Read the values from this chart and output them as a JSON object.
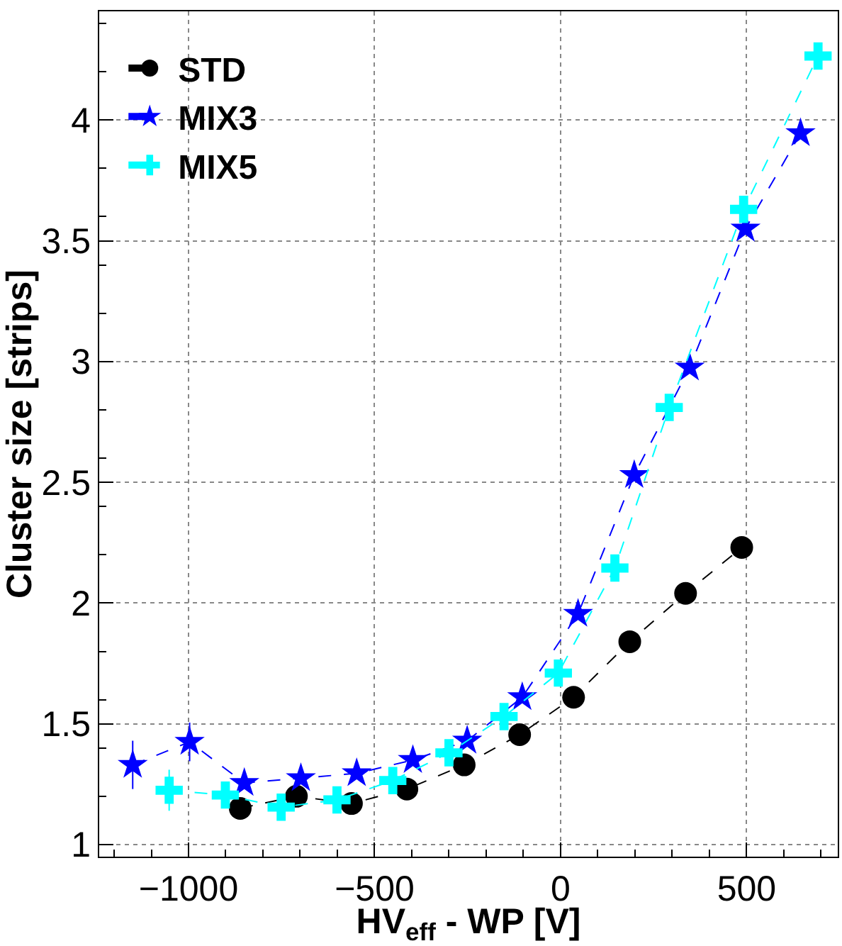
{
  "chart_data": {
    "type": "line",
    "xlabel": "HV$_{eff}$ - WP [V]",
    "ylabel": "Cluster size [strips]",
    "xlim": [
      -1240,
      745
    ],
    "ylim": [
      0.95,
      4.45
    ],
    "xticks": [
      -1000,
      -500,
      0,
      500
    ],
    "yticks": [
      1,
      1.5,
      2,
      2.5,
      3,
      3.5,
      4
    ],
    "grid": true,
    "legend": "top left",
    "line_style": "dashed",
    "series": [
      {
        "name": "STD",
        "color": "#000000",
        "marker": "circle",
        "x": [
          -861,
          -710,
          -562,
          -413,
          -259,
          -110,
          35,
          186,
          336,
          487
        ],
        "values": [
          1.15,
          1.2,
          1.17,
          1.23,
          1.33,
          1.455,
          1.61,
          1.84,
          2.04,
          2.23
        ],
        "errors": [
          0.03,
          null,
          null,
          null,
          null,
          null,
          null,
          null,
          null,
          null
        ]
      },
      {
        "name": "MIX3",
        "color": "#0000ff",
        "marker": "star",
        "x": [
          -1150,
          -997,
          -850,
          -698,
          -548,
          -397,
          -251,
          -103,
          47,
          198,
          347,
          497,
          645
        ],
        "values": [
          1.33,
          1.425,
          1.255,
          1.275,
          1.295,
          1.35,
          1.43,
          1.61,
          1.955,
          2.53,
          2.975,
          3.55,
          3.945
        ],
        "errors": [
          0.1,
          0.08,
          null,
          null,
          null,
          null,
          null,
          null,
          null,
          null,
          null,
          null,
          null
        ]
      },
      {
        "name": "MIX5",
        "color": "#00ffff",
        "marker": "cross",
        "x": [
          -1052,
          -901,
          -751,
          -601,
          -451,
          -300,
          -152,
          -6,
          146,
          292,
          492,
          692
        ],
        "values": [
          1.225,
          1.205,
          1.155,
          1.185,
          1.265,
          1.38,
          1.53,
          1.71,
          2.145,
          2.81,
          3.63,
          4.265
        ],
        "errors": [
          0.085,
          null,
          null,
          null,
          null,
          null,
          null,
          null,
          null,
          null,
          null,
          null
        ]
      }
    ]
  }
}
